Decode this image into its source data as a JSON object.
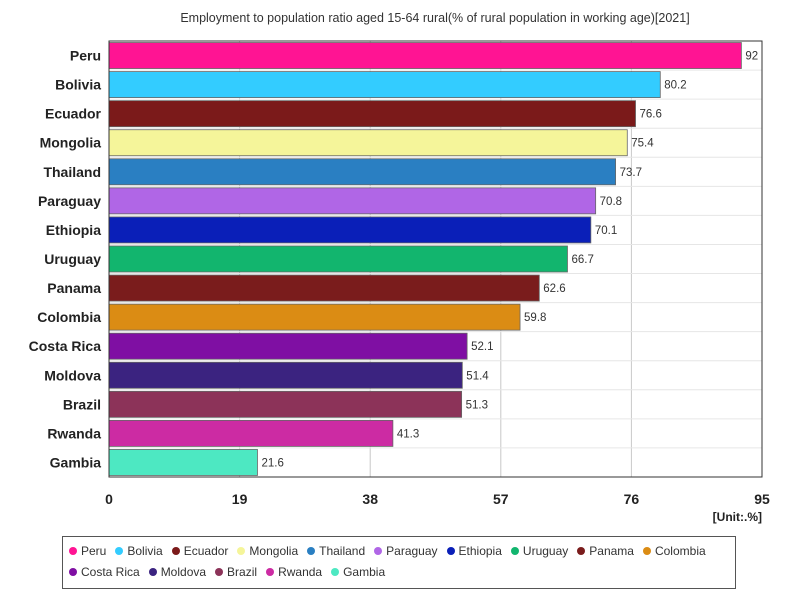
{
  "chart_data": {
    "type": "bar",
    "orientation": "horizontal",
    "title": "Employment to population ratio aged 15-64 rural(% of rural population in working age)[2021]",
    "unit_label": "[Unit:.%]",
    "categories": [
      "Peru",
      "Bolivia",
      "Ecuador",
      "Mongolia",
      "Thailand",
      "Paraguay",
      "Ethiopia",
      "Uruguay",
      "Panama",
      "Colombia",
      "Costa Rica",
      "Moldova",
      "Brazil",
      "Rwanda",
      "Gambia"
    ],
    "values": [
      92,
      80.2,
      76.6,
      75.4,
      73.7,
      70.8,
      70.1,
      66.7,
      62.6,
      59.8,
      52.1,
      51.4,
      51.3,
      41.3,
      21.6
    ],
    "value_labels": [
      "92",
      "80.2",
      "76.6",
      "75.4",
      "73.7",
      "70.8",
      "70.1",
      "66.7",
      "62.6",
      "59.8",
      "52.1",
      "51.4",
      "51.3",
      "41.3",
      "21.6"
    ],
    "colors": [
      "#ff1493",
      "#33ccff",
      "#7b1a1a",
      "#f5f59a",
      "#2a7fc2",
      "#b066e6",
      "#0a1fb8",
      "#12b56e",
      "#7a1c1c",
      "#db8c14",
      "#7f0fa3",
      "#3b2380",
      "#8c3359",
      "#cc2ba3",
      "#4de8c2"
    ],
    "xlim": [
      0,
      95
    ],
    "xticks": [
      "0",
      "19",
      "38",
      "57",
      "76",
      "95"
    ],
    "xtick_values": [
      0,
      19,
      38,
      57,
      76,
      95
    ],
    "grid": true,
    "legend_position": "bottom"
  }
}
